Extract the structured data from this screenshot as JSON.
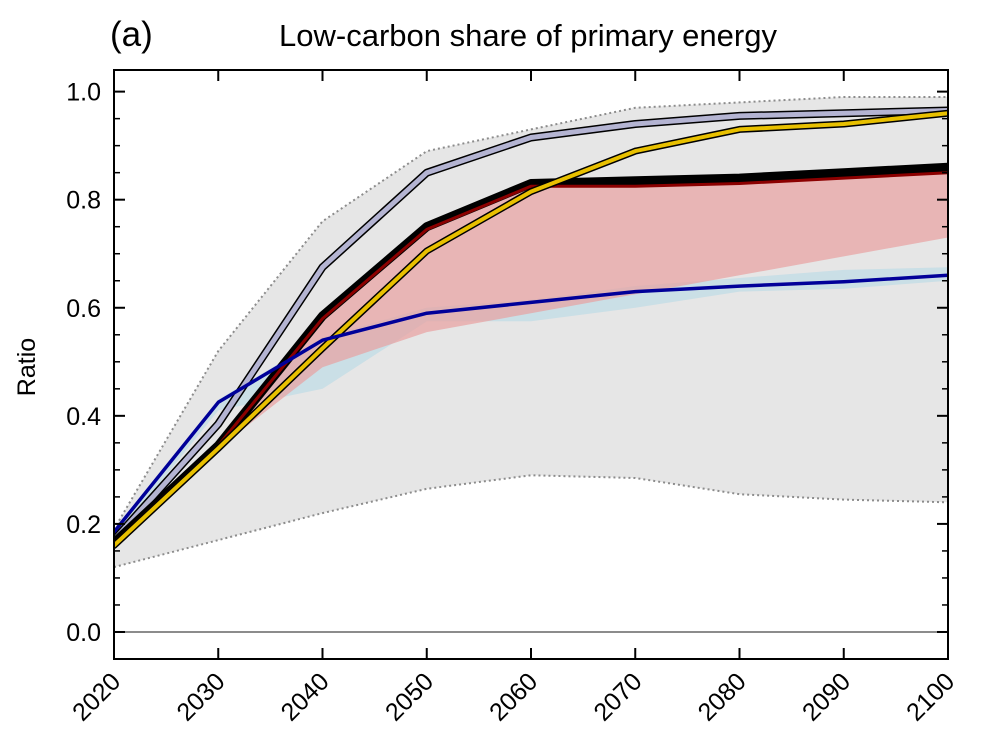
{
  "chart_data": {
    "type": "line",
    "panel_label": "(a)",
    "title": "Low-carbon share of primary energy",
    "xlabel": "",
    "ylabel": "Ratio",
    "xlim": [
      2020,
      2100
    ],
    "ylim": [
      -0.05,
      1.04
    ],
    "x": [
      2020,
      2030,
      2040,
      2050,
      2060,
      2070,
      2080,
      2090,
      2100
    ],
    "x_tick_labels": [
      "2020",
      "2030",
      "2040",
      "2050",
      "2060",
      "2070",
      "2080",
      "2090",
      "2100"
    ],
    "y_ticks": [
      0.0,
      0.2,
      0.4,
      0.6,
      0.8,
      1.0
    ],
    "y_tick_labels": [
      "0.0",
      "0.2",
      "0.4",
      "0.6",
      "0.8",
      "1.0"
    ],
    "grid": false,
    "zero_line": true,
    "bands": [
      {
        "fill": "#e6e6e6",
        "edge": "#8c8c8c",
        "edge_style": "dotted",
        "upper": [
          0.19,
          0.52,
          0.76,
          0.89,
          0.93,
          0.97,
          0.98,
          0.99,
          0.99
        ],
        "lower": [
          0.12,
          0.17,
          0.22,
          0.265,
          0.29,
          0.285,
          0.255,
          0.245,
          0.24
        ]
      },
      {
        "fill": "#add8e6",
        "opacity": 0.5,
        "upper": [
          0.19,
          0.43,
          0.545,
          0.6,
          0.615,
          0.64,
          0.655,
          0.67,
          0.675
        ],
        "lower": [
          0.17,
          0.41,
          0.45,
          0.575,
          0.575,
          0.6,
          0.63,
          0.635,
          0.65
        ]
      },
      {
        "fill": "#e8a0a0",
        "opacity": 0.7,
        "upper": [
          0.175,
          0.345,
          0.575,
          0.745,
          0.825,
          0.83,
          0.835,
          0.845,
          0.855
        ],
        "lower": [
          0.165,
          0.34,
          0.49,
          0.555,
          0.59,
          0.625,
          0.66,
          0.695,
          0.73
        ]
      }
    ],
    "series": [
      {
        "color": "#b4b4d2",
        "outline": "#000000",
        "width": 8,
        "values": [
          0.17,
          0.385,
          0.675,
          0.85,
          0.915,
          0.94,
          0.955,
          0.96,
          0.965
        ]
      },
      {
        "color": "#000000",
        "width": 9,
        "values": [
          0.165,
          0.345,
          0.585,
          0.75,
          0.83,
          0.835,
          0.84,
          0.85,
          0.86
        ]
      },
      {
        "color": "#8b0000",
        "width": 3,
        "values": [
          0.165,
          0.345,
          0.58,
          0.745,
          0.825,
          0.825,
          0.83,
          0.84,
          0.85
        ]
      },
      {
        "color": "#e8c000",
        "outline": "#000000",
        "width": 7,
        "values": [
          0.16,
          0.34,
          0.525,
          0.705,
          0.815,
          0.89,
          0.93,
          0.94,
          0.96
        ]
      },
      {
        "color": "#000099",
        "width": 3.5,
        "values": [
          0.185,
          0.425,
          0.54,
          0.59,
          0.61,
          0.63,
          0.64,
          0.648,
          0.66
        ]
      }
    ]
  }
}
